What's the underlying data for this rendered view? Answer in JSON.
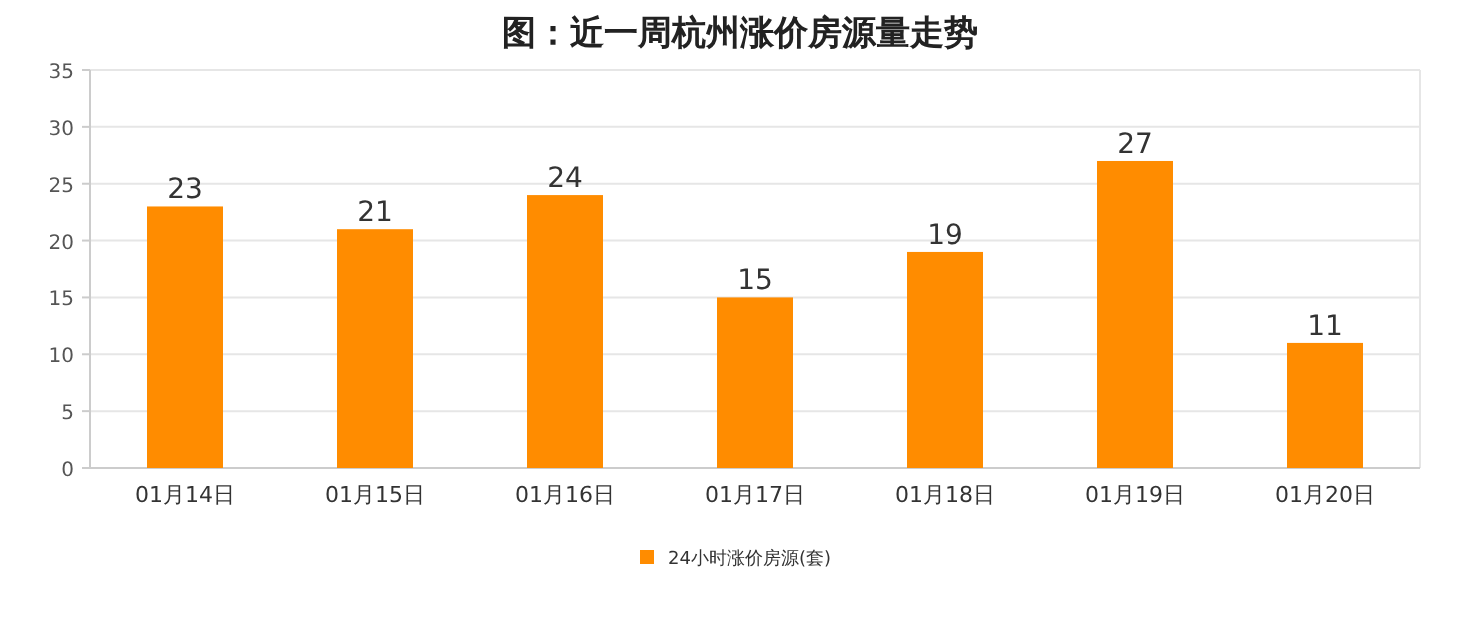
{
  "chart_data": {
    "type": "bar",
    "title": "图：近一周杭州涨价房源量走势",
    "categories": [
      "01月14日",
      "01月15日",
      "01月16日",
      "01月17日",
      "01月18日",
      "01月19日",
      "01月20日"
    ],
    "series": [
      {
        "name": "24小时涨价房源(套)",
        "color": "#ff8c00",
        "values": [
          23,
          21,
          24,
          15,
          19,
          27,
          11
        ]
      }
    ],
    "ylim": [
      0,
      35
    ],
    "yticks": [
      0,
      5,
      10,
      15,
      20,
      25,
      30,
      35
    ],
    "grid": "y",
    "legend": "bottom",
    "data_labels": true
  }
}
